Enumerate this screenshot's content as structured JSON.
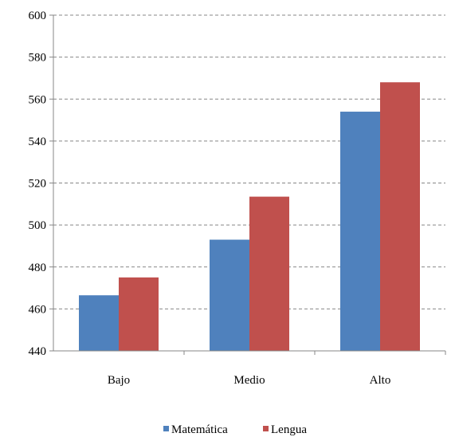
{
  "chart_data": {
    "type": "bar",
    "categories": [
      "Bajo",
      "Medio",
      "Alto"
    ],
    "series": [
      {
        "name": "Matemática",
        "values": [
          466.5,
          493,
          554
        ],
        "color": "#4f81bd"
      },
      {
        "name": "Lengua",
        "values": [
          475,
          513.5,
          568
        ],
        "color": "#c0504d"
      }
    ],
    "y_ticks": [
      "440",
      "460",
      "480",
      "500",
      "520",
      "540",
      "560",
      "580",
      "600"
    ],
    "ylim": [
      440,
      600
    ],
    "grid": true,
    "legend_position": "bottom"
  }
}
